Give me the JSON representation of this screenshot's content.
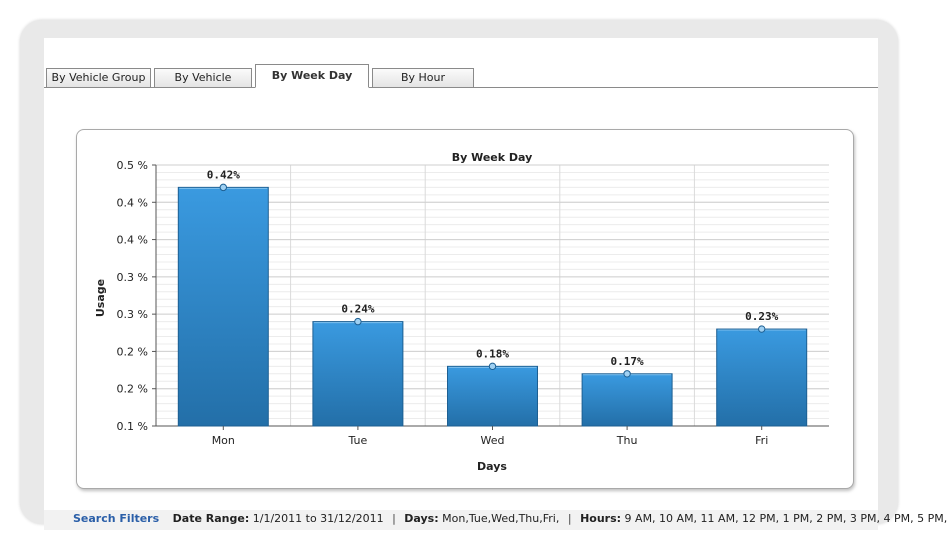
{
  "tabs": [
    {
      "label": "By Vehicle Group",
      "active": false
    },
    {
      "label": "By Vehicle",
      "active": false
    },
    {
      "label": "By Week Day",
      "active": true
    },
    {
      "label": "By Hour",
      "active": false
    }
  ],
  "chart_data": {
    "type": "bar",
    "title": "By Week Day",
    "xlabel": "Days",
    "ylabel": "Usage",
    "categories": [
      "Mon",
      "Tue",
      "Wed",
      "Thu",
      "Fri"
    ],
    "values": [
      0.42,
      0.24,
      0.18,
      0.17,
      0.23
    ],
    "data_labels": [
      "0.42%",
      "0.24%",
      "0.18%",
      "0.17%",
      "0.23%"
    ],
    "yticks": [
      {
        "value": 0.1,
        "label": "0.1 %"
      },
      {
        "value": 0.15,
        "label": "0.2 %"
      },
      {
        "value": 0.2,
        "label": "0.2 %"
      },
      {
        "value": 0.25,
        "label": "0.3 %"
      },
      {
        "value": 0.3,
        "label": "0.3 %"
      },
      {
        "value": 0.35,
        "label": "0.4 %"
      },
      {
        "value": 0.4,
        "label": "0.4 %"
      },
      {
        "value": 0.45,
        "label": "0.5 %"
      }
    ],
    "ylim": [
      0.1,
      0.45
    ],
    "grid": true,
    "bar_color": "#2e86c9"
  },
  "filters": {
    "link": "Search Filters",
    "date_range_label": "Date Range:",
    "date_range_value": "1/1/2011 to 31/12/2011",
    "days_label": "Days:",
    "days_value": "Mon,Tue,Wed,Thu,Fri,",
    "hours_label": "Hours:",
    "hours_value": "9 AM, 10 AM, 11 AM, 12 PM, 1 PM, 2 PM, 3 PM, 4 PM, 5 PM,",
    "separator": "|"
  }
}
